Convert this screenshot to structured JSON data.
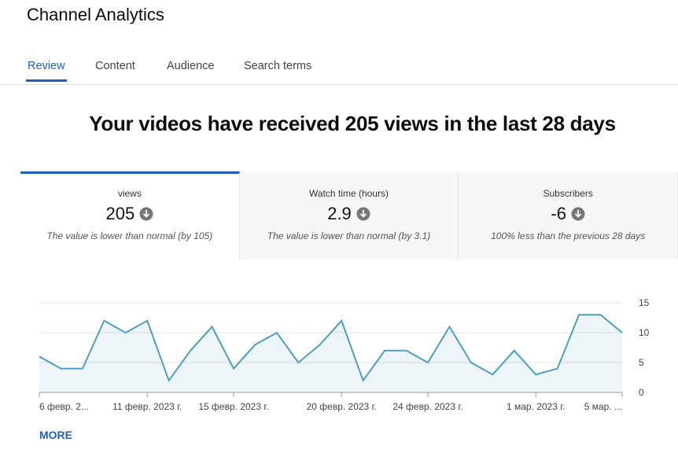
{
  "header": {
    "title": "Channel Analytics"
  },
  "tabs": [
    "Review",
    "Content",
    "Audience",
    "Search terms"
  ],
  "headline": "Your videos have received 205 views in the last 28 days",
  "cards": [
    {
      "label": "views",
      "value": "205",
      "note": "The value is lower than normal (by 105)"
    },
    {
      "label": "Watch time (hours)",
      "value": "2.9",
      "note": "The value is lower than normal (by 3.1)"
    },
    {
      "label": "Subscribers",
      "value": "-6",
      "note": "100% less than the previous 28 days"
    }
  ],
  "chart_data": {
    "type": "line",
    "categories": [
      "6 февр. 2...",
      null,
      null,
      null,
      null,
      "11 февр. 2023 г.",
      null,
      null,
      null,
      "15 февр. 2023 г.",
      null,
      null,
      null,
      null,
      "20 февр. 2023 г.",
      null,
      null,
      null,
      "24 февр. 2023 г.",
      null,
      null,
      null,
      null,
      "1 мар. 2023 г.",
      null,
      null,
      null,
      "5 мар. ..."
    ],
    "values": [
      6,
      4,
      4,
      12,
      10,
      12,
      2,
      7,
      11,
      4,
      8,
      10,
      5,
      8,
      12,
      2,
      7,
      7,
      5,
      11,
      5,
      3,
      7,
      3,
      4,
      13,
      13,
      10
    ],
    "color": "#4a9fc2",
    "ylim": [
      0,
      15
    ],
    "yticks": [
      0,
      5,
      10,
      15
    ],
    "grid": true
  },
  "more": "MORE"
}
